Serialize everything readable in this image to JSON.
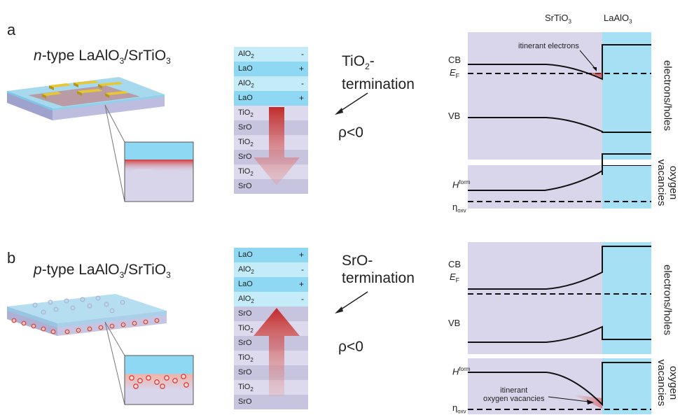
{
  "panel_a": {
    "letter": "a",
    "title_prefix": "n",
    "title_rest": "-type LaAlO",
    "title_sub1": "3",
    "title_mid": "/SrTiO",
    "title_sub2": "3",
    "stack": [
      {
        "name": "AlO",
        "sub": "2",
        "sign": "-"
      },
      {
        "name": "LaO",
        "sub": "",
        "sign": "+"
      },
      {
        "name": "AlO",
        "sub": "2",
        "sign": "-"
      },
      {
        "name": "LaO",
        "sub": "",
        "sign": "+"
      },
      {
        "name": "TiO",
        "sub": "2",
        "sign": ""
      },
      {
        "name": "SrO",
        "sub": "",
        "sign": ""
      },
      {
        "name": "TiO",
        "sub": "2",
        "sign": ""
      },
      {
        "name": "SrO",
        "sub": "",
        "sign": ""
      },
      {
        "name": "TiO",
        "sub": "2",
        "sign": ""
      },
      {
        "name": "SrO",
        "sub": "",
        "sign": ""
      }
    ],
    "termination_line1": "TiO",
    "termination_sub": "2",
    "termination_line1_suffix": "-",
    "termination_line2": "termination",
    "rho": "ρ<0",
    "header_left": "SrTiO",
    "header_left_sub": "3",
    "header_right": "LaAlO",
    "header_right_sub": "3",
    "cb": "CB",
    "ef": "E",
    "ef_sub": "F",
    "vb": "VB",
    "annotation": "itinerant electrons",
    "side_label_top": "electrons/holes",
    "hform": "H",
    "hform_sup": "form",
    "eta": "η",
    "eta_sub": "oxv",
    "side_label_bottom_1": "oxygen",
    "side_label_bottom_2": "vacancies"
  },
  "panel_b": {
    "letter": "b",
    "title_prefix": "p",
    "title_rest": "-type LaAlO",
    "title_sub1": "3",
    "title_mid": "/SrTiO",
    "title_sub2": "3",
    "stack": [
      {
        "name": "LaO",
        "sub": "",
        "sign": "+"
      },
      {
        "name": "AlO",
        "sub": "2",
        "sign": "-"
      },
      {
        "name": "LaO",
        "sub": "",
        "sign": "+"
      },
      {
        "name": "AlO",
        "sub": "2",
        "sign": "-"
      },
      {
        "name": "SrO",
        "sub": "",
        "sign": ""
      },
      {
        "name": "TiO",
        "sub": "2",
        "sign": ""
      },
      {
        "name": "SrO",
        "sub": "",
        "sign": ""
      },
      {
        "name": "TiO",
        "sub": "2",
        "sign": ""
      },
      {
        "name": "SrO",
        "sub": "",
        "sign": ""
      },
      {
        "name": "TiO",
        "sub": "2",
        "sign": ""
      },
      {
        "name": "SrO",
        "sub": "",
        "sign": ""
      }
    ],
    "termination_line1": "SrO-",
    "termination_line2": "termination",
    "rho": "ρ<0",
    "cb": "CB",
    "ef": "E",
    "ef_sub": "F",
    "vb": "VB",
    "side_label_top": "electrons/holes",
    "hform": "H",
    "hform_sup": "form",
    "annotation_1": "itinerant",
    "annotation_2": "oxygen vacancies",
    "eta": "η",
    "eta_sub": "oxv",
    "side_label_bottom_1": "oxygen",
    "side_label_bottom_2": "vacancies"
  },
  "colors": {
    "laalo3_layer": "#8fd8f3",
    "laalo3_layer_light": "#c4ebf8",
    "srtio3_layer": "#c7c4df",
    "srtio3_layer_light": "#dcdaec",
    "band_bg_sto": "#d9d6ec",
    "band_bg_lao": "#a6e0f5",
    "arrow_red": "#c22b2b",
    "gold": "#e8c832"
  }
}
